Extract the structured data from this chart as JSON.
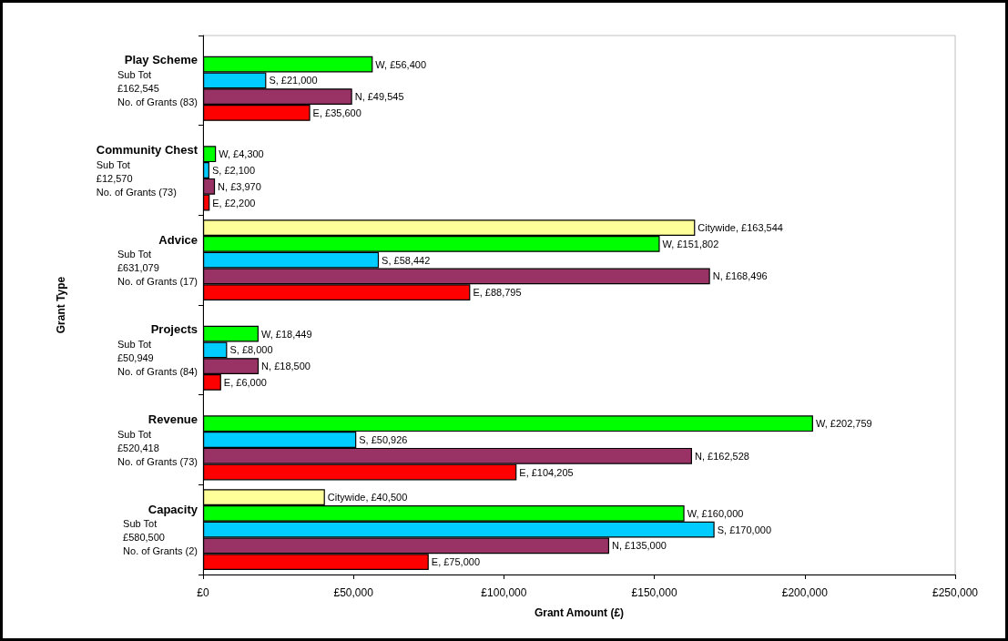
{
  "chart_data": {
    "type": "bar",
    "orientation": "horizontal",
    "xlabel": "Grant Amount (£)",
    "ylabel": "Grant Type",
    "categories": [
      "Play Scheme\nSub Tot\n£162,545\nNo. of Grants (83)",
      "Community Chest\nSub Tot\n£12,570\nNo. of Grants (73)",
      "Advice\nSub Tot\n£631,079\nNo. of Grants (17)",
      "Projects\nSub Tot\n£50,949\nNo. of Grants (84)",
      "Revenue\nSub Tot\n£520,418\nNo. of Grants (73)",
      "Capacity\nSub Tot\n£580,500\nNo. of Grants (2)"
    ],
    "series": [
      {
        "color": "#ffff99",
        "values": [
          null,
          null,
          163544,
          null,
          null,
          40500
        ],
        "value_labels": [
          null,
          null,
          "Citywide, £163,544",
          null,
          null,
          "Citywide, £40,500"
        ]
      },
      {
        "color": "#00ff00",
        "values": [
          56400,
          4300,
          151802,
          18449,
          202759,
          160000
        ],
        "value_labels": [
          "W, £56,400",
          "W, £4,300",
          "W, £151,802",
          "W, £18,449",
          "W, £202,759",
          "W, £160,000"
        ]
      },
      {
        "color": "#00ccff",
        "values": [
          21000,
          2100,
          58442,
          8000,
          50926,
          170000
        ],
        "value_labels": [
          "S, £21,000",
          "S, £2,100",
          "S, £58,442",
          "S, £8,000",
          "S, £50,926",
          "S, £170,000"
        ]
      },
      {
        "color": "#993366",
        "values": [
          49545,
          3970,
          168496,
          18500,
          162528,
          135000
        ],
        "value_labels": [
          "N, £49,545",
          "N, £3,970",
          "N, £168,496",
          "N, £18,500",
          "N, £162,528",
          "N, £135,000"
        ]
      },
      {
        "color": "#ff0000",
        "values": [
          35600,
          2200,
          88795,
          6000,
          104205,
          75000
        ],
        "value_labels": [
          "E, £35,600",
          "E, £2,200",
          "E, £88,795",
          "E, £6,000",
          "E, £104,205",
          "E, £75,000"
        ]
      }
    ],
    "xlim": [
      0,
      250000
    ],
    "xticks": [
      {
        "value": 0,
        "label": "£0"
      },
      {
        "value": 50000,
        "label": "£50,000"
      },
      {
        "value": 100000,
        "label": "£100,000"
      },
      {
        "value": 150000,
        "label": "£150,000"
      },
      {
        "value": 200000,
        "label": "£200,000"
      },
      {
        "value": 250000,
        "label": "£250,000"
      }
    ],
    "grid": false
  }
}
